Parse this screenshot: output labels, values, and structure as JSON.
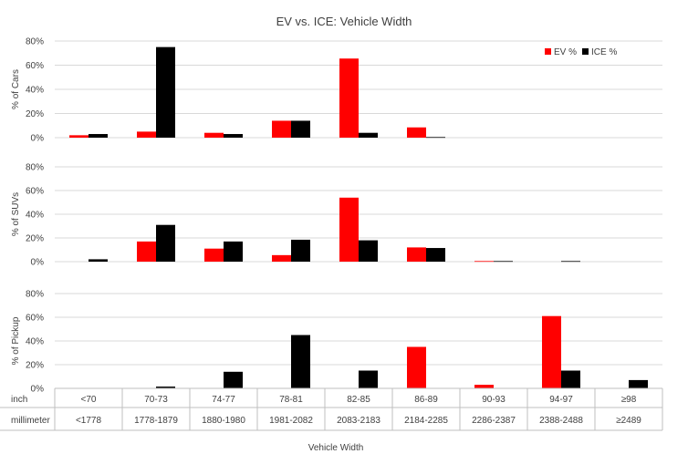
{
  "chart_data": {
    "type": "bar",
    "title": "EV vs. ICE: Vehicle Width",
    "xlabel": "Vehicle Width",
    "row_labels": [
      "inch",
      "millimeter"
    ],
    "categories": [
      "<70",
      "70-73",
      "74-77",
      "78-81",
      "82-85",
      "86-89",
      "90-93",
      "94-97",
      "≥98"
    ],
    "categories_mm": [
      "<1778",
      "1778-1879",
      "1880-1980",
      "1981-2082",
      "2083-2183",
      "2184-2285",
      "2286-2387",
      "2388-2488",
      "≥2489"
    ],
    "legend": [
      {
        "name": "EV %",
        "color": "#ff0000"
      },
      {
        "name": "ICE %",
        "color": "#000000"
      }
    ],
    "legend_position": "top-right",
    "grid": true,
    "yticks": [
      "0%",
      "20%",
      "40%",
      "60%",
      "80%"
    ],
    "panels": [
      {
        "ylabel": "% of Cars",
        "ylim": [
          0,
          80
        ],
        "series": [
          {
            "name": "EV %",
            "color": "#ff0000",
            "values": [
              2,
              5,
              4,
              14,
              65.5,
              8.5,
              0,
              0,
              0
            ]
          },
          {
            "name": "ICE %",
            "color": "#000000",
            "values": [
              3,
              75,
              3,
              14,
              4,
              0.5,
              0,
              0,
              0
            ]
          }
        ]
      },
      {
        "ylabel": "% of SUVs",
        "ylim": [
          0,
          80
        ],
        "series": [
          {
            "name": "EV %",
            "color": "#ff0000",
            "values": [
              0,
              17,
              11,
              5.5,
              54,
              12,
              0.5,
              0,
              0
            ]
          },
          {
            "name": "ICE %",
            "color": "#000000",
            "values": [
              2,
              31,
              17,
              18.5,
              18,
              11.5,
              0.5,
              0.5,
              0
            ]
          }
        ]
      },
      {
        "ylabel": "% of Pickup",
        "ylim": [
          0,
          80
        ],
        "series": [
          {
            "name": "EV %",
            "color": "#ff0000",
            "values": [
              0,
              0,
              0,
              0,
              0,
              35,
              3,
              61,
              0
            ]
          },
          {
            "name": "ICE %",
            "color": "#000000",
            "values": [
              0,
              1.5,
              14,
              45,
              15,
              0,
              0,
              15,
              7
            ]
          }
        ]
      }
    ]
  }
}
